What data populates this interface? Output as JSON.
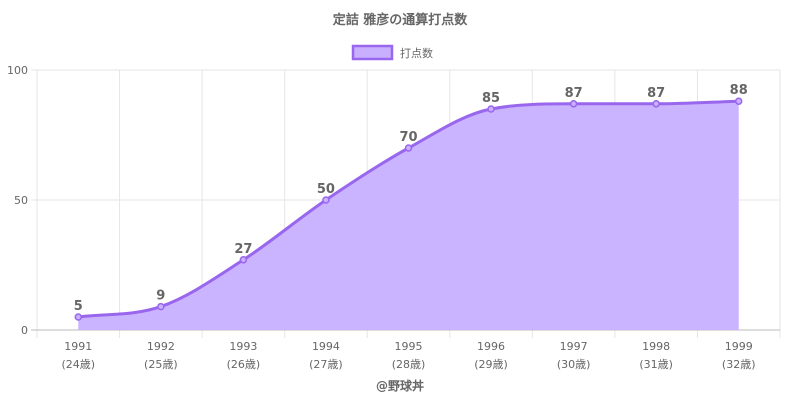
{
  "chart_data": {
    "type": "area",
    "title": "定詰 雅彦の通算打点数",
    "series": [
      {
        "name": "打点数",
        "values": [
          5,
          9,
          27,
          50,
          70,
          85,
          87,
          87,
          88
        ]
      }
    ],
    "categories": [
      "1991",
      "1992",
      "1993",
      "1994",
      "1995",
      "1996",
      "1997",
      "1998",
      "1999"
    ],
    "age_labels": [
      "(24歳)",
      "(25歳)",
      "(26歳)",
      "(27歳)",
      "(28歳)",
      "(29歳)",
      "(30歳)",
      "(31歳)",
      "(32歳)"
    ],
    "ylim": [
      0,
      100
    ],
    "yticks": [
      0,
      50,
      100
    ],
    "grid": true,
    "legend_position": "top",
    "colors": {
      "line": "#9966ee",
      "fill": "#c8b0ff",
      "grid": "#e6e6e6",
      "text": "#666666"
    }
  },
  "footer": "@野球丼"
}
